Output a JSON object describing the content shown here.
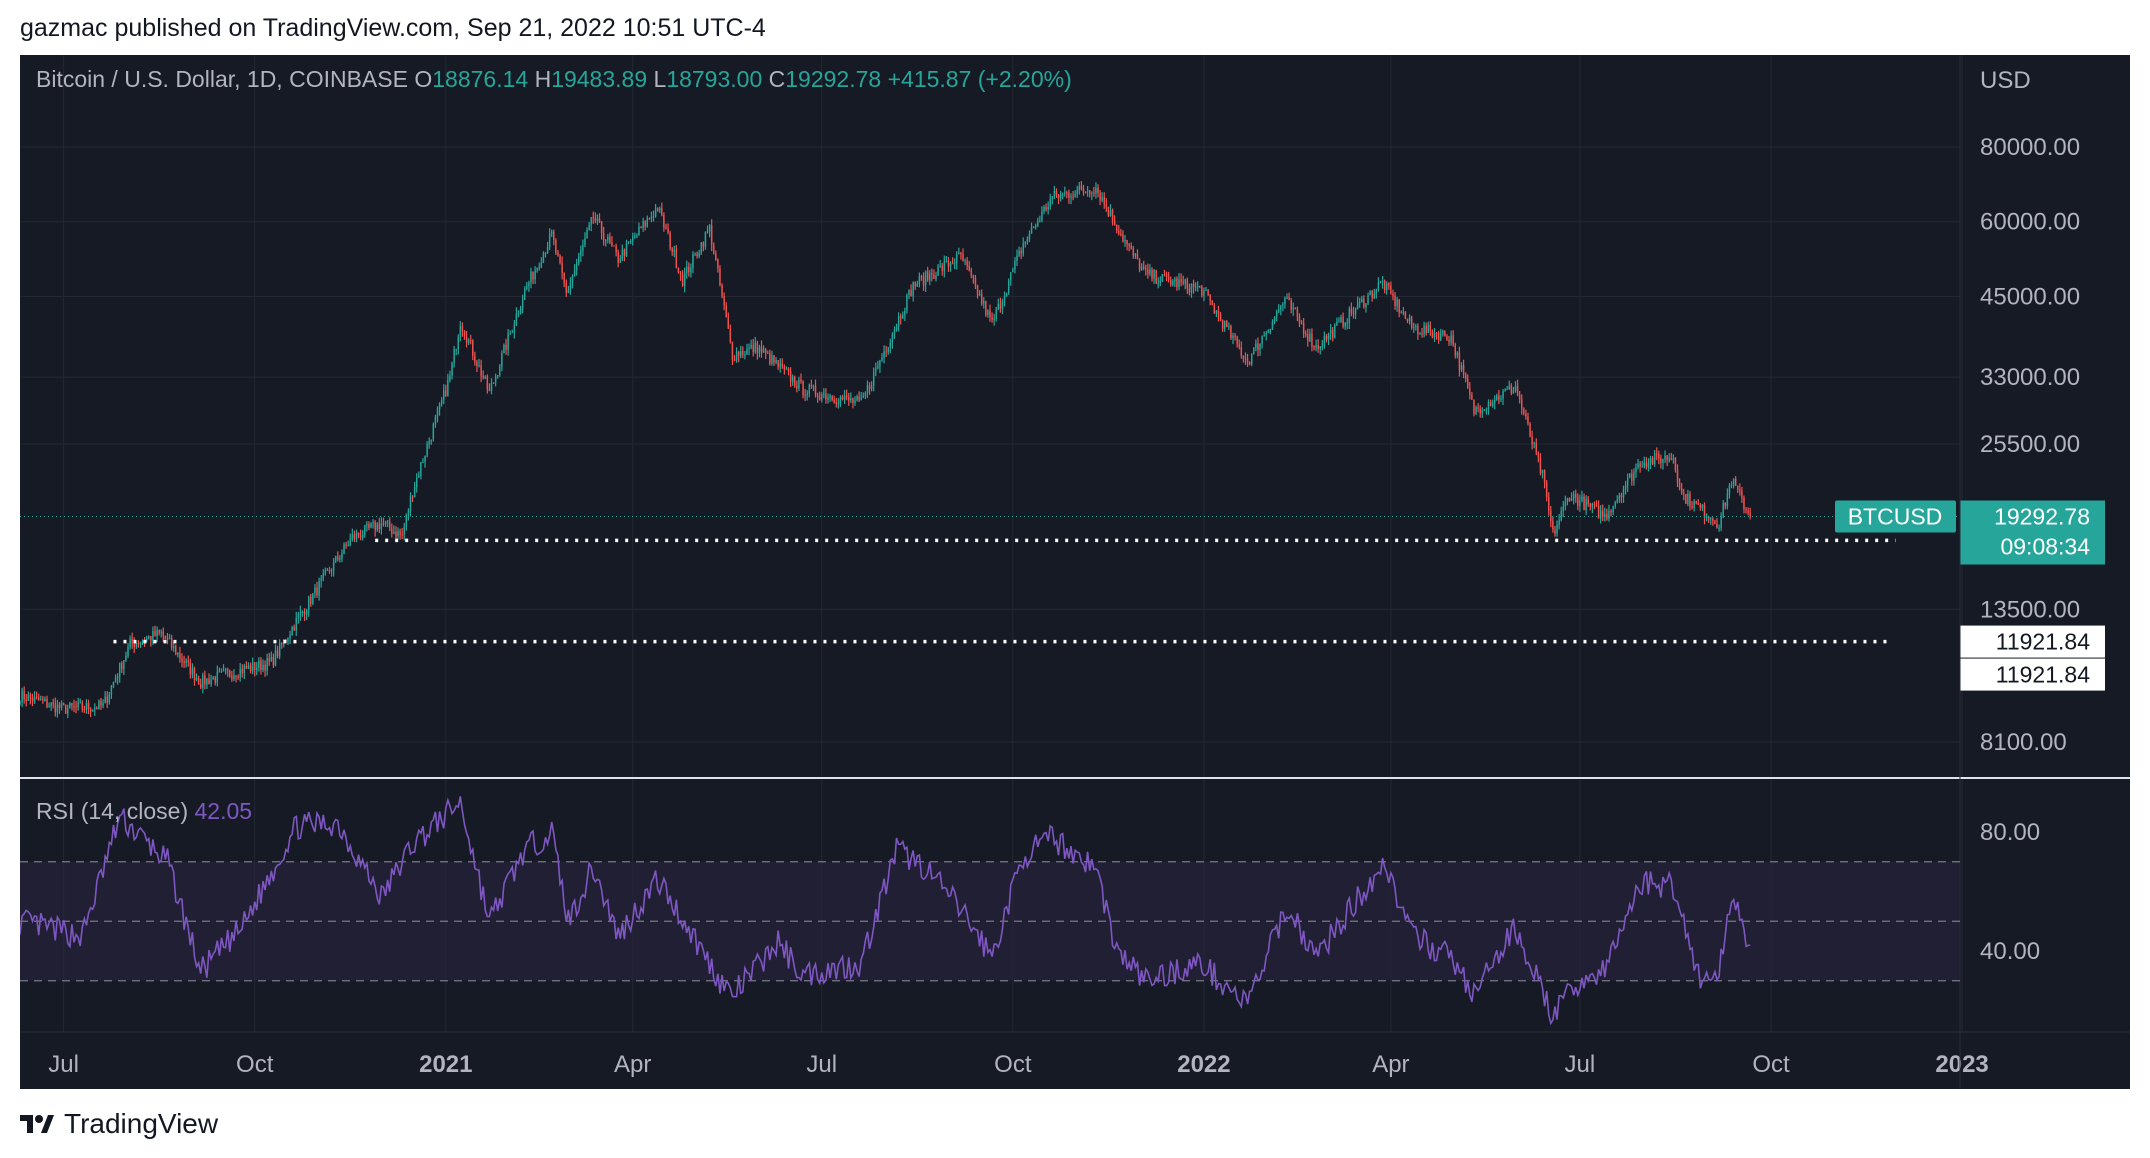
{
  "publish_line": "gazmac published on TradingView.com, Sep 21, 2022 10:51 UTC-4",
  "brand": "TradingView",
  "chart_data": {
    "type": "candlestick",
    "symbol_title": "Bitcoin / U.S. Dollar, 1D, COINBASE",
    "ohlc": {
      "open_label": "O",
      "open": "18876.14",
      "high_label": "H",
      "high": "19483.89",
      "low_label": "L",
      "low": "18793.00",
      "close_label": "C",
      "close": "19292.78",
      "change": "+415.87 (+2.20%)"
    },
    "currency": "USD",
    "scale": "log",
    "y_ticks": [
      "80000.00",
      "60000.00",
      "45000.00",
      "33000.00",
      "25500.00",
      "13500.00",
      "8100.00"
    ],
    "x_ticks": [
      "Jul",
      "Oct",
      "2021",
      "Apr",
      "Jul",
      "Oct",
      "2022",
      "Apr",
      "Jul",
      "Oct",
      "2023"
    ],
    "x_range": [
      "2020-06-10",
      "2022-12-31"
    ],
    "price_tag": {
      "label": "BTCUSD",
      "price": "19292.78",
      "countdown": "09:08:34"
    },
    "horizontal_lines": [
      {
        "value": 17600,
        "label": ""
      },
      {
        "value": 11921.84,
        "label": "11921.84"
      },
      {
        "value": 11921.84,
        "label": "11921.84"
      }
    ],
    "close_series": [
      [
        "2020-06-10",
        9700
      ],
      [
        "2020-07-01",
        9200
      ],
      [
        "2020-07-20",
        9300
      ],
      [
        "2020-08-02",
        11800
      ],
      [
        "2020-08-17",
        12300
      ],
      [
        "2020-09-05",
        10200
      ],
      [
        "2020-09-25",
        10700
      ],
      [
        "2020-10-09",
        11000
      ],
      [
        "2020-10-21",
        12900
      ],
      [
        "2020-11-05",
        15500
      ],
      [
        "2020-11-17",
        17800
      ],
      [
        "2020-12-01",
        18800
      ],
      [
        "2020-12-11",
        17900
      ],
      [
        "2020-12-16",
        21300
      ],
      [
        "2021-01-03",
        33000
      ],
      [
        "2021-01-08",
        41000
      ],
      [
        "2021-01-22",
        31000
      ],
      [
        "2021-02-08",
        46000
      ],
      [
        "2021-02-21",
        57000
      ],
      [
        "2021-02-28",
        45500
      ],
      [
        "2021-03-13",
        61000
      ],
      [
        "2021-03-25",
        52000
      ],
      [
        "2021-04-13",
        63500
      ],
      [
        "2021-04-25",
        48000
      ],
      [
        "2021-05-08",
        58500
      ],
      [
        "2021-05-19",
        36000
      ],
      [
        "2021-05-31",
        37000
      ],
      [
        "2021-06-22",
        31500
      ],
      [
        "2021-07-20",
        29800
      ],
      [
        "2021-08-14",
        47000
      ],
      [
        "2021-09-06",
        52500
      ],
      [
        "2021-09-21",
        40500
      ],
      [
        "2021-10-06",
        55000
      ],
      [
        "2021-10-20",
        66000
      ],
      [
        "2021-11-10",
        68500
      ],
      [
        "2021-11-26",
        54000
      ],
      [
        "2021-12-04",
        49000
      ],
      [
        "2021-12-31",
        46200
      ],
      [
        "2022-01-22",
        35000
      ],
      [
        "2022-02-09",
        44500
      ],
      [
        "2022-02-24",
        37000
      ],
      [
        "2022-03-28",
        47500
      ],
      [
        "2022-04-11",
        40000
      ],
      [
        "2022-04-30",
        38500
      ],
      [
        "2022-05-11",
        29000
      ],
      [
        "2022-05-31",
        31800
      ],
      [
        "2022-06-13",
        22500
      ],
      [
        "2022-06-18",
        18000
      ],
      [
        "2022-06-26",
        21000
      ],
      [
        "2022-07-13",
        19300
      ],
      [
        "2022-07-30",
        23800
      ],
      [
        "2022-08-15",
        24300
      ],
      [
        "2022-08-19",
        21000
      ],
      [
        "2022-09-06",
        18800
      ],
      [
        "2022-09-12",
        22200
      ],
      [
        "2022-09-21",
        19292.78
      ]
    ],
    "rsi": {
      "label": "RSI (14, close)",
      "value": "42.05",
      "y_ticks": [
        "80.00",
        "40.00"
      ],
      "band": [
        30,
        70
      ],
      "midline": 50,
      "series": [
        [
          "2020-06-10",
          50
        ],
        [
          "2020-07-10",
          45
        ],
        [
          "2020-07-28",
          85
        ],
        [
          "2020-08-20",
          70
        ],
        [
          "2020-09-05",
          33
        ],
        [
          "2020-09-25",
          48
        ],
        [
          "2020-10-21",
          82
        ],
        [
          "2020-11-10",
          83
        ],
        [
          "2020-12-01",
          58
        ],
        [
          "2020-12-16",
          76
        ],
        [
          "2021-01-08",
          90
        ],
        [
          "2021-01-22",
          50
        ],
        [
          "2021-02-08",
          74
        ],
        [
          "2021-02-21",
          80
        ],
        [
          "2021-03-01",
          50
        ],
        [
          "2021-03-13",
          68
        ],
        [
          "2021-03-25",
          45
        ],
        [
          "2021-04-13",
          64
        ],
        [
          "2021-05-01",
          44
        ],
        [
          "2021-05-13",
          30
        ],
        [
          "2021-05-19",
          25
        ],
        [
          "2021-06-10",
          43
        ],
        [
          "2021-06-22",
          32
        ],
        [
          "2021-07-20",
          36
        ],
        [
          "2021-08-06",
          74
        ],
        [
          "2021-08-20",
          68
        ],
        [
          "2021-09-07",
          53
        ],
        [
          "2021-09-21",
          38
        ],
        [
          "2021-10-06",
          72
        ],
        [
          "2021-10-20",
          78
        ],
        [
          "2021-11-10",
          68
        ],
        [
          "2021-11-20",
          40
        ],
        [
          "2021-12-04",
          30
        ],
        [
          "2021-12-30",
          36
        ],
        [
          "2022-01-22",
          22
        ],
        [
          "2022-02-10",
          55
        ],
        [
          "2022-02-24",
          38
        ],
        [
          "2022-03-29",
          70
        ],
        [
          "2022-04-11",
          45
        ],
        [
          "2022-04-30",
          38
        ],
        [
          "2022-05-11",
          25
        ],
        [
          "2022-05-31",
          48
        ],
        [
          "2022-06-18",
          18
        ],
        [
          "2022-07-01",
          30
        ],
        [
          "2022-07-13",
          33
        ],
        [
          "2022-07-30",
          63
        ],
        [
          "2022-08-15",
          62
        ],
        [
          "2022-08-28",
          30
        ],
        [
          "2022-09-06",
          32
        ],
        [
          "2022-09-12",
          60
        ],
        [
          "2022-09-21",
          42.05
        ]
      ]
    }
  },
  "colors": {
    "bg": "#161a25",
    "grid": "#242833",
    "text": "#b2b5be",
    "up": "#26a69a",
    "down": "#ef5350",
    "rsi_line": "#7e57c2",
    "rsi_band": "#2a2340",
    "tag": "#26a69a",
    "level_line": "#ffffff"
  }
}
